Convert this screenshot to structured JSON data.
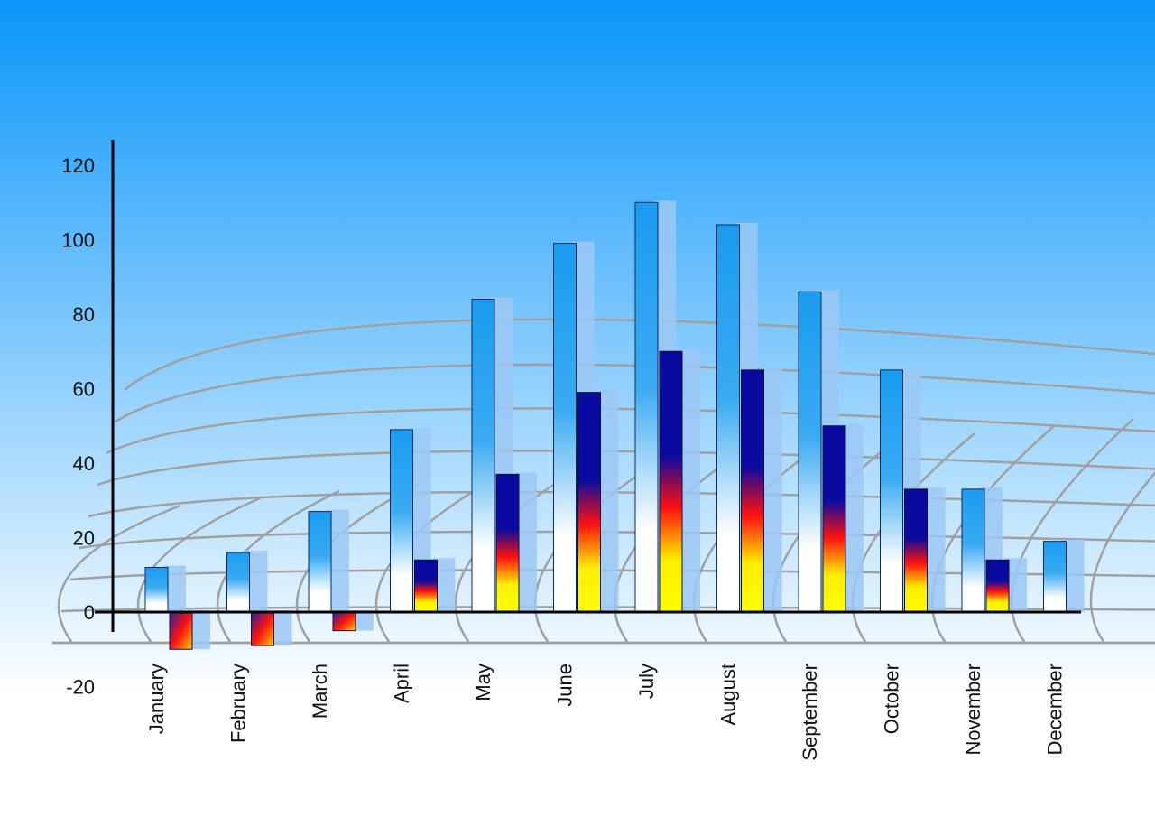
{
  "chart_data": {
    "type": "bar",
    "title": "",
    "xlabel": "",
    "ylabel": "",
    "ylim": [
      -20,
      120
    ],
    "yticks": [
      -20,
      0,
      20,
      40,
      60,
      80,
      100,
      120
    ],
    "grid": false,
    "categories": [
      "January",
      "February",
      "March",
      "April",
      "May",
      "June",
      "July",
      "August",
      "September",
      "October",
      "November",
      "December"
    ],
    "series": [
      {
        "values": [
          12,
          16,
          27,
          49,
          84,
          99,
          110,
          104,
          86,
          65,
          33,
          19
        ],
        "color": "#1a9cf0"
      },
      {
        "values": [
          -10,
          -9,
          -5,
          14,
          37,
          59,
          70,
          65,
          50,
          33,
          14,
          null
        ],
        "color": "#0a0aa0"
      }
    ],
    "colors": {
      "background_top": "#0a96fa",
      "background_bottom": "#ffffff",
      "axis": "#000000"
    }
  }
}
